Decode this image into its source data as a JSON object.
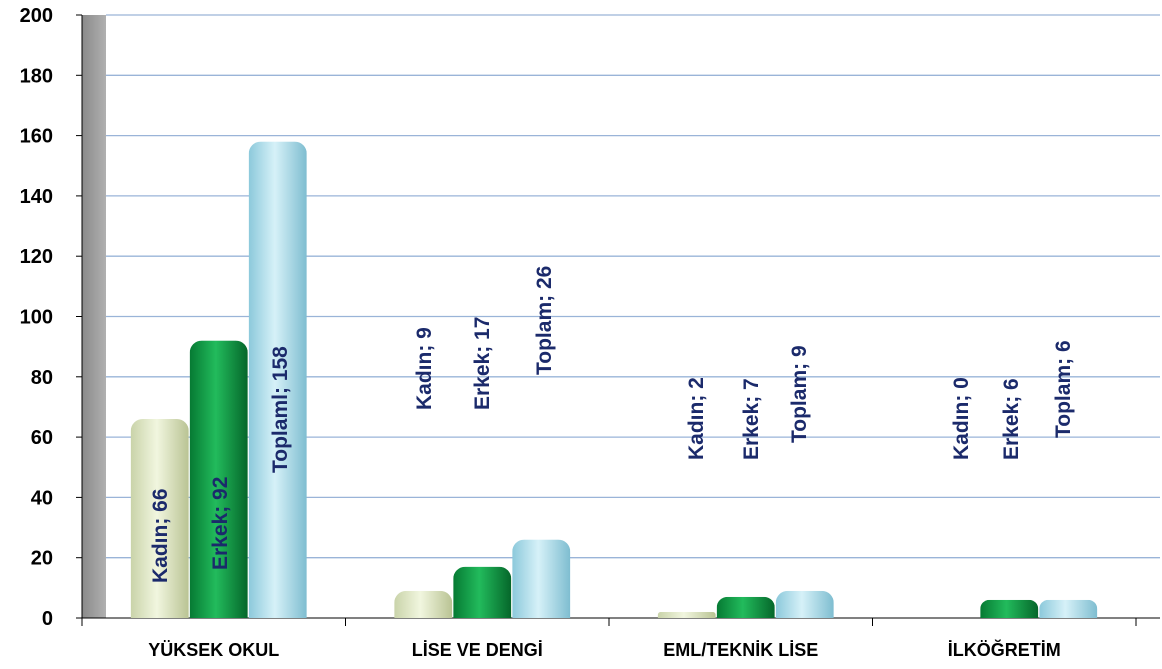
{
  "chart_data": {
    "type": "bar",
    "categories": [
      "YÜKSEK OKUL",
      "LİSE VE DENGİ",
      "EML/TEKNİK LİSE",
      "İLKÖĞRETİM"
    ],
    "series": [
      {
        "name": "Kadın",
        "values": [
          66,
          9,
          2,
          0
        ],
        "labels": [
          "Kadın; 66",
          "Kadın; 9",
          "Kadın; 2",
          "Kadın; 0"
        ]
      },
      {
        "name": "Erkek",
        "values": [
          92,
          17,
          7,
          6
        ],
        "labels": [
          "Erkek; 92",
          "Erkek; 17",
          "Erkek; 7",
          "Erkek; 6"
        ]
      },
      {
        "name": "Toplam",
        "values": [
          158,
          26,
          9,
          6
        ],
        "labels": [
          "Toplaml; 158",
          "Toplam; 26",
          "Toplam; 9",
          "Toplam; 6"
        ]
      }
    ],
    "yticks": [
      "0",
      "20",
      "40",
      "60",
      "80",
      "100",
      "120",
      "140",
      "160",
      "180",
      "200"
    ],
    "ylim": [
      0,
      200
    ],
    "grid": true,
    "colors": {
      "kadin": "#dfe8c6",
      "erkek": "#0f9a45",
      "toplam": "#b5e2ef",
      "gridline": "#9ab4d8",
      "wall": "#9c9c9c",
      "label": "#1b2a6b"
    }
  }
}
